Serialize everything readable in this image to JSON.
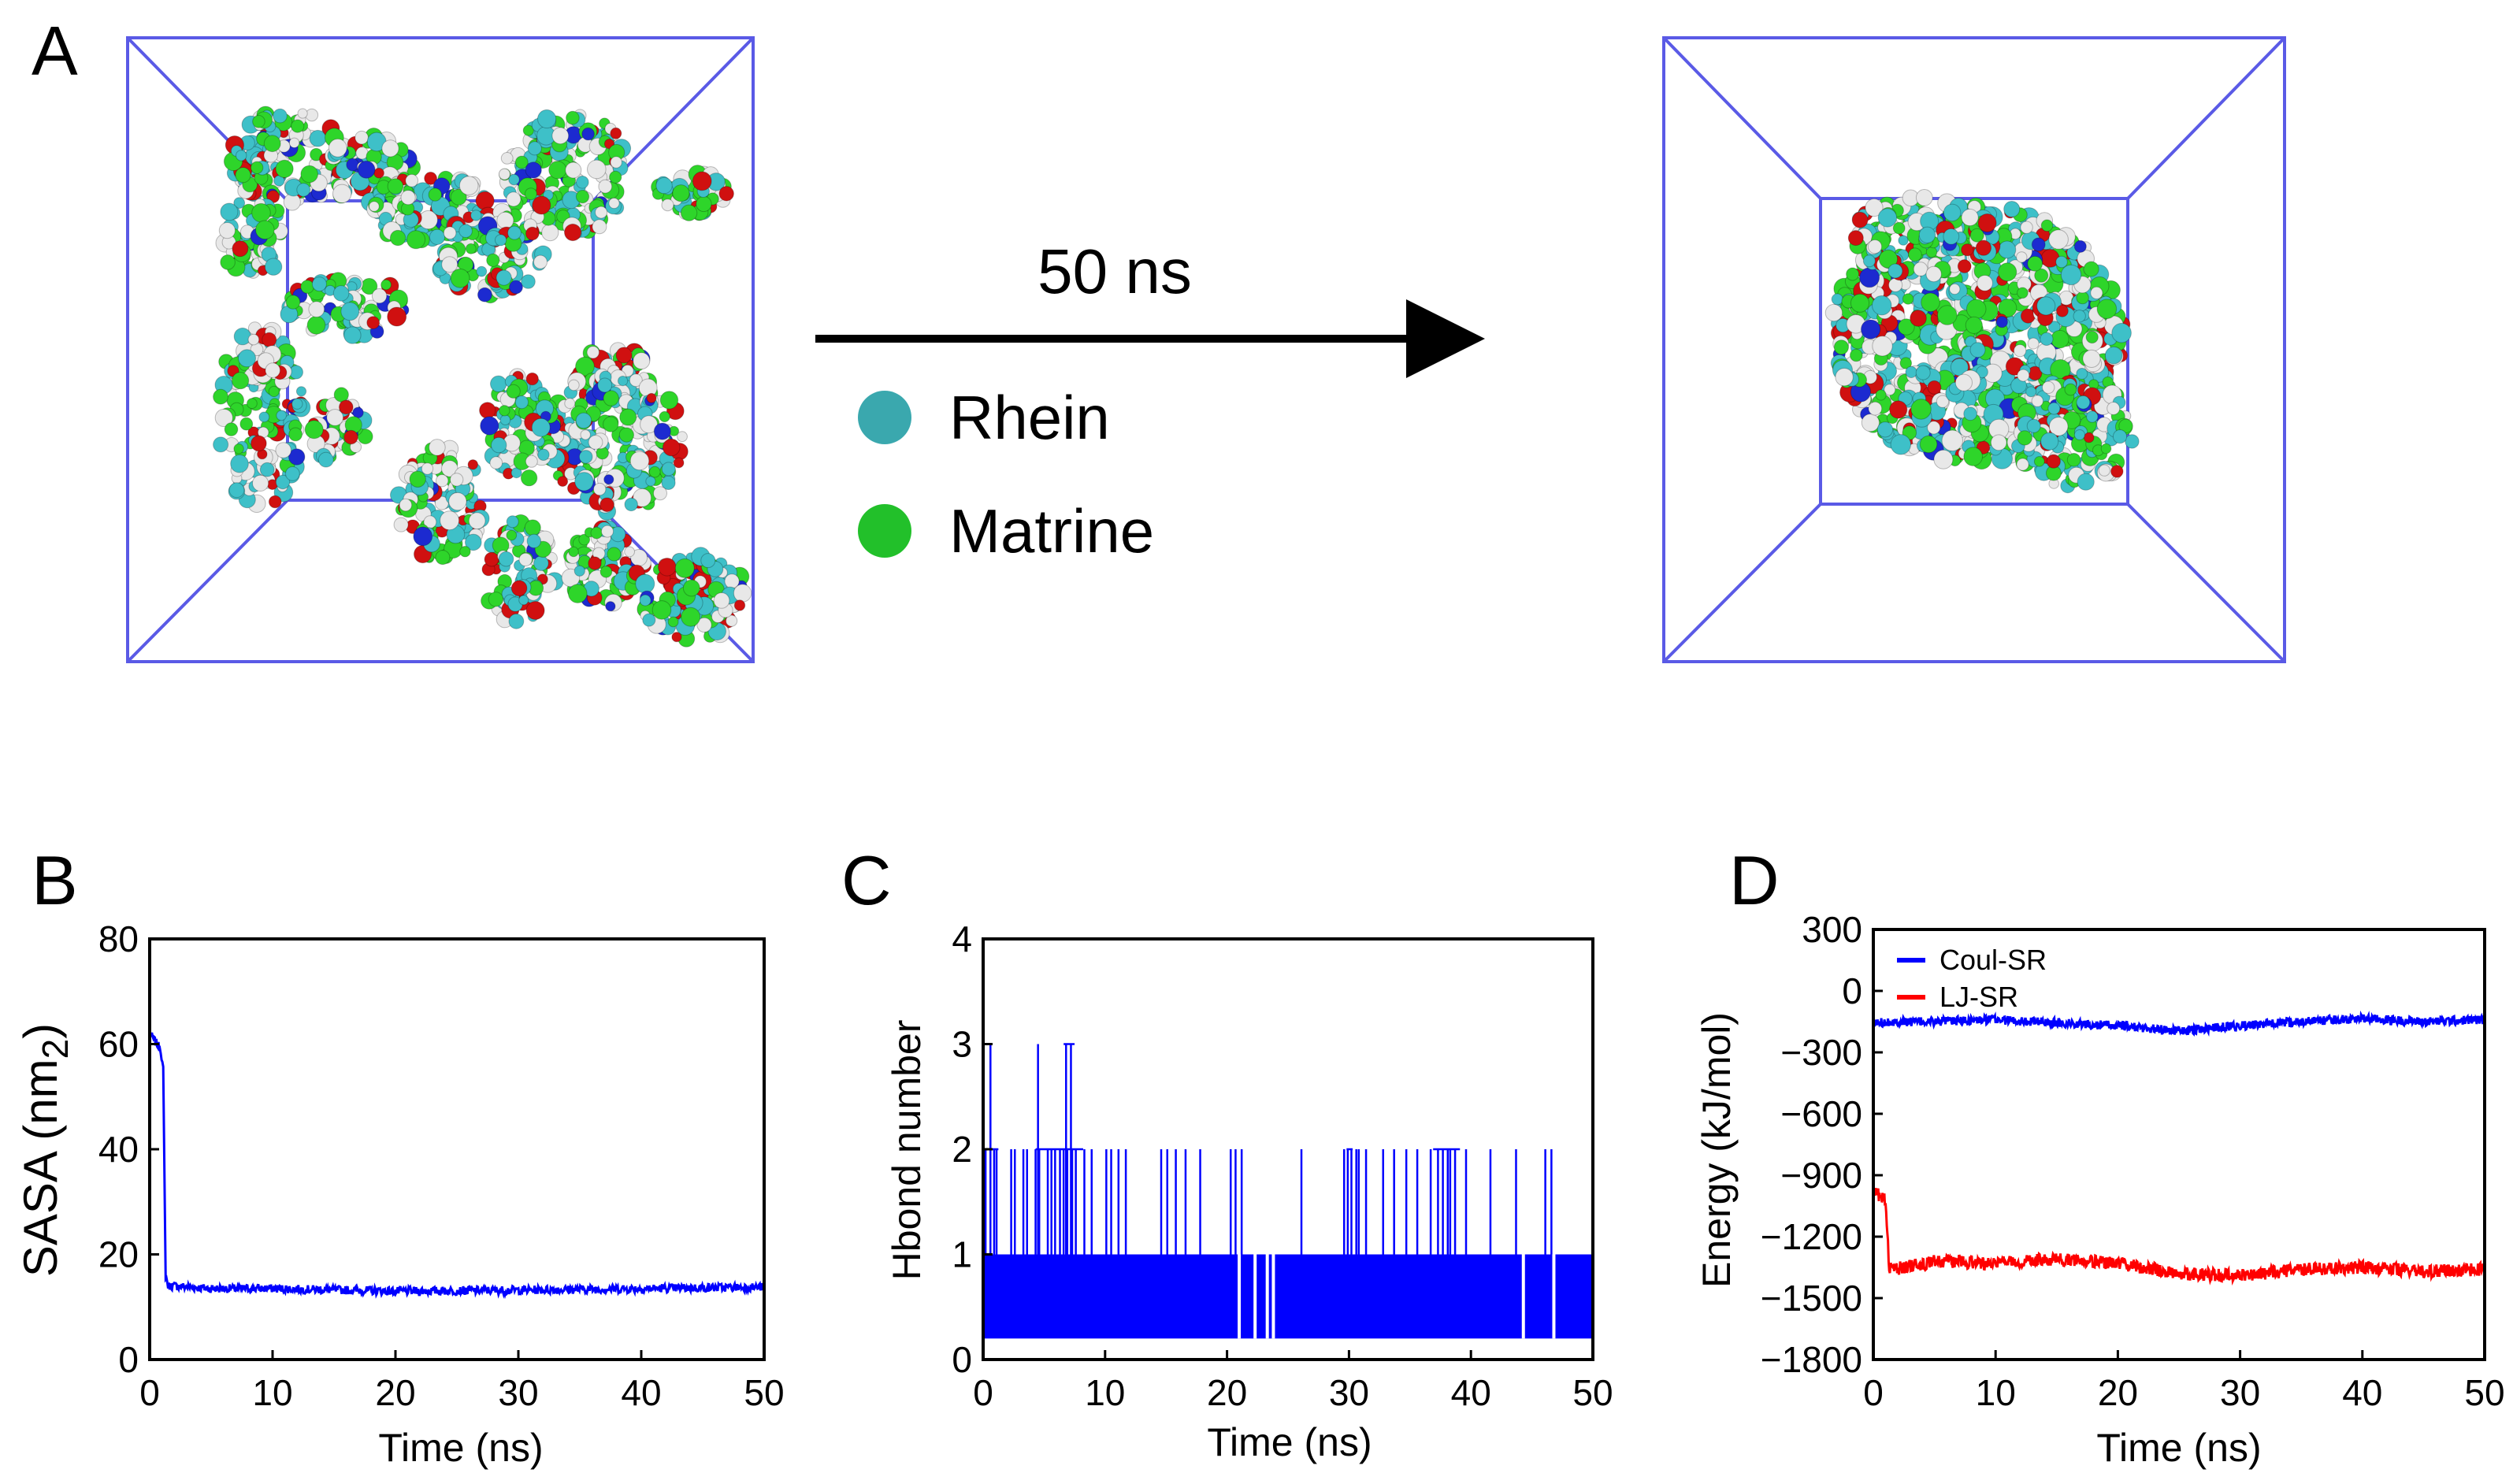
{
  "panel_a": {
    "letter": "A",
    "arrow_label": "50 ns",
    "legend": [
      {
        "name": "Rhein",
        "color": "#3aa8ae"
      },
      {
        "name": "Matrine",
        "color": "#22c02a"
      }
    ],
    "atom_colors": {
      "carbon_rhein": "#3ec0c8",
      "carbon_matrine": "#2ed52a",
      "oxygen": "#d01010",
      "hydrogen": "#e8e8e8",
      "nitrogen": "#1c2ad0"
    },
    "box_color": "#5a5ae6"
  },
  "colors": {
    "blue": "#0000ff",
    "red": "#ff0000"
  },
  "chart_data": [
    {
      "panel": "B",
      "type": "line",
      "title": "",
      "xlabel": "Time (ns)",
      "ylabel": "SASA (nm",
      "ylabel_sub": "2",
      "ylabel_close": ")",
      "xlim": [
        0,
        50
      ],
      "ylim": [
        0,
        80
      ],
      "xticks": [
        0,
        10,
        20,
        30,
        40,
        50
      ],
      "yticks": [
        0,
        20,
        40,
        60,
        80
      ],
      "series": [
        {
          "name": "SASA",
          "color": "#0000ff",
          "x": [
            0,
            0.3,
            0.6,
            0.9,
            1.1,
            1.3,
            1.5,
            2,
            5,
            10,
            20,
            30,
            40,
            50
          ],
          "y": [
            62,
            61,
            60,
            59,
            55,
            16,
            14,
            14,
            13.5,
            13.5,
            13,
            13.2,
            13.5,
            13.8
          ]
        }
      ]
    },
    {
      "panel": "C",
      "type": "line",
      "title": "",
      "xlabel": "Time (ns)",
      "ylabel": "Hbond number",
      "xlim": [
        0,
        50
      ],
      "ylim": [
        0,
        4
      ],
      "xticks": [
        0,
        10,
        20,
        30,
        40,
        50
      ],
      "yticks": [
        0,
        1,
        2,
        3,
        4
      ],
      "baseline": 0.2,
      "band_top": 1,
      "gaps": [
        21.0,
        22.3,
        23.3,
        23.8,
        44.3,
        46.8
      ],
      "spikes2": [
        0.2,
        0.9,
        1.1,
        2.3,
        2.6,
        3.3,
        3.6,
        4.3,
        4.6,
        5.3,
        5.6,
        5.9,
        6.3,
        6.6,
        6.9,
        7.3,
        7.6,
        8.3,
        8.9,
        10.1,
        10.5,
        11.1,
        11.7,
        14.6,
        15.1,
        15.8,
        16.6,
        17.8,
        20.3,
        20.7,
        21.2,
        26.1,
        29.6,
        29.9,
        30.2,
        30.6,
        30.8,
        31.4,
        32.8,
        33.7,
        34.7,
        35.6,
        36.7,
        37.3,
        37.7,
        38.1,
        38.3,
        38.7,
        39.6,
        41.6,
        43.7,
        46.1,
        46.6
      ],
      "spikes3": [
        0.6,
        4.5,
        6.8,
        7.2
      ],
      "color": "#0000ff"
    },
    {
      "panel": "D",
      "type": "line",
      "title": "",
      "xlabel": "Time (ns)",
      "ylabel": "Energy (kJ/mol)",
      "xlim": [
        0,
        50
      ],
      "ylim": [
        -1800,
        300
      ],
      "xticks": [
        0,
        10,
        20,
        30,
        40,
        50
      ],
      "yticks": [
        300,
        0,
        -300,
        -600,
        -900,
        -1200,
        -1500,
        -1800
      ],
      "ytick_labels": [
        "300",
        "0",
        "−300",
        "−600",
        "−900",
        "−1200",
        "−1500",
        "−1800"
      ],
      "series": [
        {
          "name": "Coul-SR",
          "color": "#0000ff",
          "x": [
            0,
            1,
            5,
            10,
            15,
            20,
            25,
            30,
            35,
            40,
            45,
            50
          ],
          "y": [
            -160,
            -150,
            -150,
            -140,
            -155,
            -170,
            -195,
            -170,
            -150,
            -135,
            -150,
            -140
          ]
        },
        {
          "name": "LJ-SR",
          "color": "#ff0000",
          "x": [
            0,
            0.5,
            1,
            1.3,
            1.6,
            5,
            10,
            15,
            20,
            25,
            30,
            35,
            40,
            45,
            50
          ],
          "y": [
            -960,
            -1000,
            -1020,
            -1350,
            -1360,
            -1320,
            -1330,
            -1310,
            -1330,
            -1380,
            -1390,
            -1360,
            -1350,
            -1370,
            -1360
          ]
        }
      ]
    }
  ]
}
